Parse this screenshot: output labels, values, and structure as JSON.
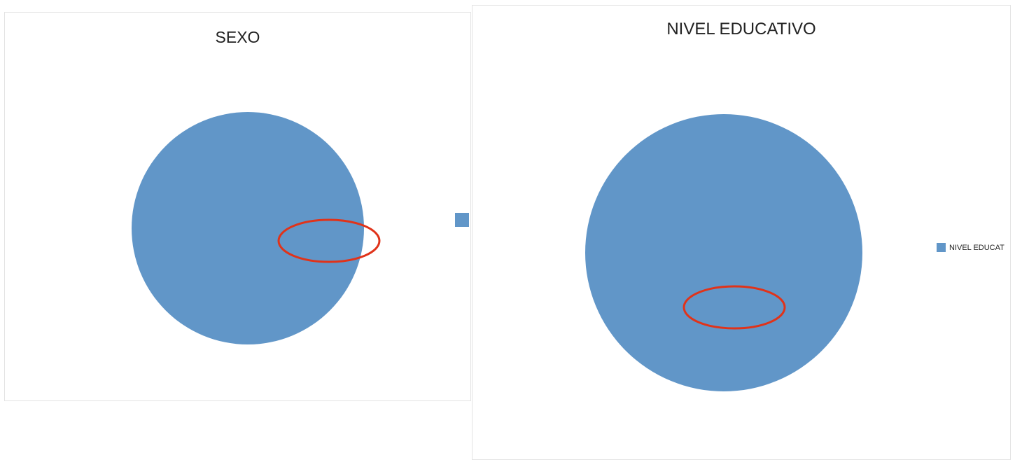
{
  "chart_data": [
    {
      "type": "pie",
      "title": "SEXO",
      "series": [
        {
          "values": [
            1
          ]
        }
      ],
      "legend": {
        "position": "right",
        "entries": [
          ""
        ]
      },
      "annotation": "red-ellipse-highlight"
    },
    {
      "type": "pie",
      "title": "NIVEL EDUCATIVO",
      "series": [
        {
          "name": "NIVEL EDUCAT",
          "values": [
            1
          ]
        }
      ],
      "legend": {
        "position": "right",
        "entries": [
          "NIVEL EDUCAT"
        ]
      },
      "annotation": "red-ellipse-highlight"
    }
  ],
  "colors": {
    "slice": "#6196c8",
    "annotation": "#e0331a",
    "title": "#222222",
    "panel_border": "#e3e3e3"
  }
}
